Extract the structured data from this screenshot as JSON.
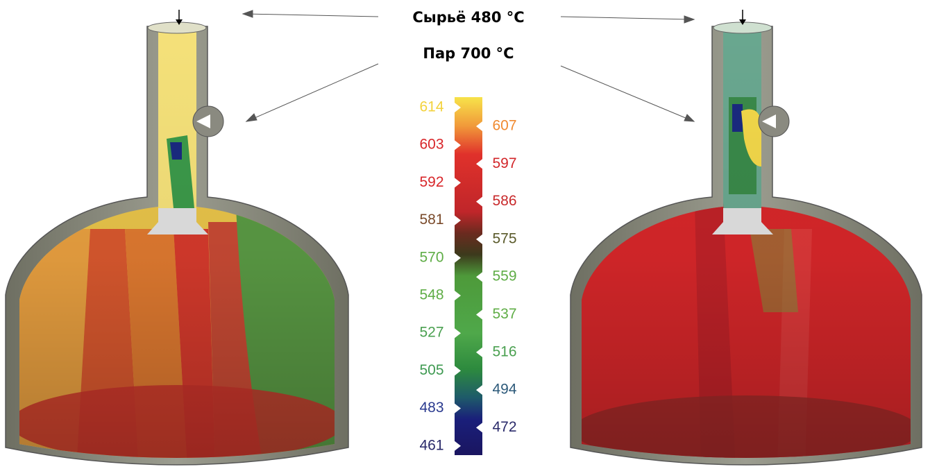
{
  "labels": {
    "feed": "Сырьё 480 °C",
    "steam": "Пар 700 °C"
  },
  "scale": {
    "left": [
      614,
      603,
      592,
      581,
      570,
      548,
      527,
      505,
      483,
      461
    ],
    "right": [
      607,
      597,
      586,
      575,
      559,
      537,
      516,
      494,
      472
    ]
  }
}
